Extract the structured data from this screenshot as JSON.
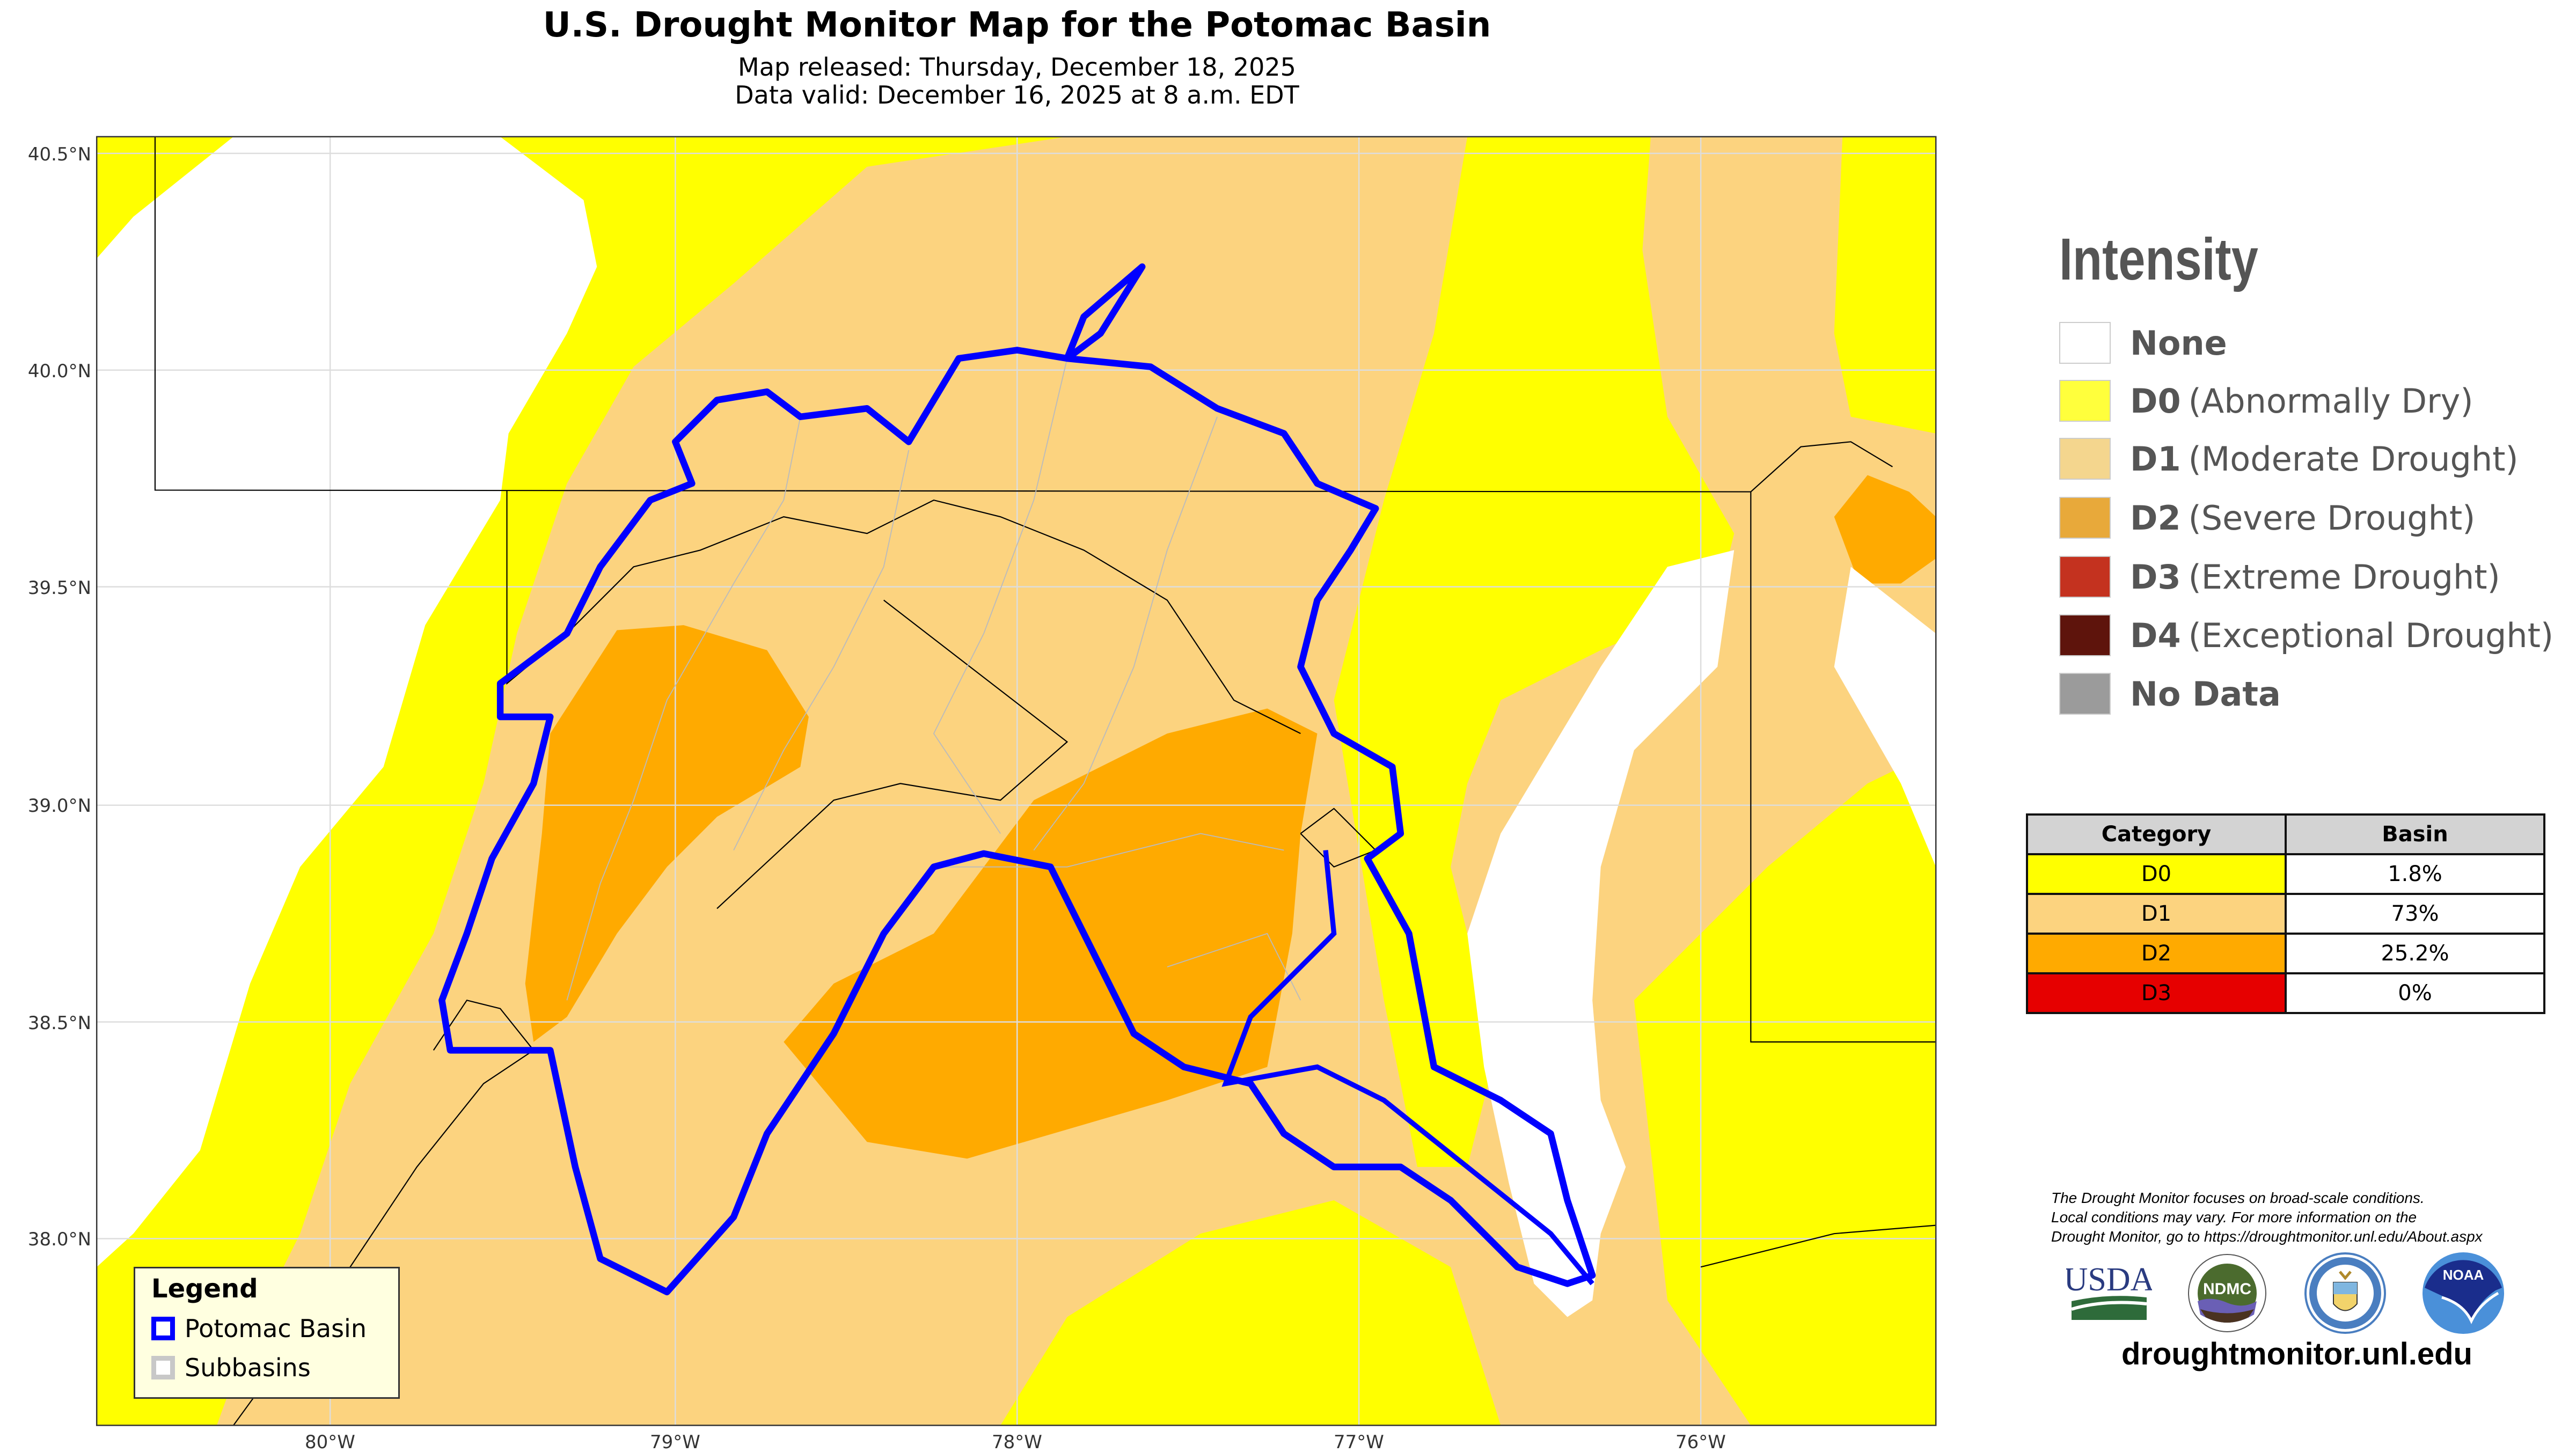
{
  "header": {
    "title": "U.S. Drought Monitor Map for the Potomac Basin",
    "released": "Map released: Thursday, December 18, 2025",
    "valid": "Data valid: December 16, 2025 at 8 a.m. EDT"
  },
  "map": {
    "lat_ticks": [
      "40.5°N",
      "40.0°N",
      "39.5°N",
      "39.0°N",
      "38.5°N",
      "38.0°N"
    ],
    "lon_ticks": [
      "80°W",
      "79°W",
      "78°W",
      "77°W",
      "76°W"
    ],
    "legend": {
      "title": "Legend",
      "items": [
        {
          "label": "Potomac Basin",
          "color": "#0000ff"
        },
        {
          "label": "Subbasins",
          "color": "#c8c8c8"
        }
      ]
    },
    "colors": {
      "D0": "#ffff00",
      "D1": "#fcd37f",
      "D2": "#ffaa00",
      "none": "#ffffff",
      "basin": "#0000ff"
    }
  },
  "intensity": {
    "title": "Intensity",
    "items": [
      {
        "code": "None",
        "desc": "",
        "color": "#ffffff"
      },
      {
        "code": "D0",
        "desc": "(Abnormally Dry)",
        "color": "#ffff3c"
      },
      {
        "code": "D1",
        "desc": "(Moderate Drought)",
        "color": "#f4d68e"
      },
      {
        "code": "D2",
        "desc": "(Severe Drought)",
        "color": "#e8a93a"
      },
      {
        "code": "D3",
        "desc": "(Extreme Drought)",
        "color": "#c4321f"
      },
      {
        "code": "D4",
        "desc": "(Exceptional Drought)",
        "color": "#5e140c"
      },
      {
        "code": "No Data",
        "desc": "",
        "color": "#9b9b9b"
      }
    ]
  },
  "table": {
    "headers": [
      "Category",
      "Basin"
    ],
    "rows": [
      {
        "category": "D0",
        "basin": "1.8%",
        "color": "#ffff00"
      },
      {
        "category": "D1",
        "basin": "73%",
        "color": "#fcd37f"
      },
      {
        "category": "D2",
        "basin": "25.2%",
        "color": "#ffaa00"
      },
      {
        "category": "D3",
        "basin": "0%",
        "color": "#e60000"
      }
    ]
  },
  "footer": {
    "disclaimer": [
      "The Drought Monitor focuses on broad-scale conditions.",
      "Local conditions may vary. For more information on the",
      "Drought Monitor, go to https://droughtmonitor.unl.edu/About.aspx"
    ],
    "logos": [
      "USDA",
      "NDMC",
      "Department of Commerce",
      "NOAA"
    ],
    "site": "droughtmonitor.unl.edu"
  }
}
